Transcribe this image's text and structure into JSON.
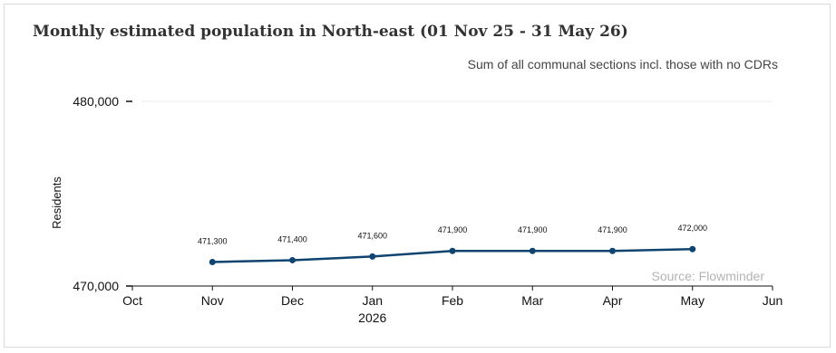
{
  "title": "Monthly estimated population in North-east (01 Nov 25 - 31 May 26)",
  "subtitle": "Sum of all communal sections incl. those with no CDRs",
  "source": "Source: Flowminder",
  "colors": {
    "line": "#0f4470",
    "grid": "#ebebeb",
    "axis": "#111111"
  },
  "chart_data": {
    "type": "line",
    "x": [
      "Nov",
      "Dec",
      "Jan",
      "Feb",
      "Mar",
      "Apr",
      "May"
    ],
    "series": [
      {
        "values": [
          471300,
          471400,
          471600,
          471900,
          471900,
          471900,
          472000
        ]
      }
    ],
    "data_labels": [
      "471,300",
      "471,400",
      "471,600",
      "471,900",
      "471,900",
      "471,900",
      "472,000"
    ],
    "x_ticks": [
      "Oct",
      "Nov",
      "Dec",
      "Jan",
      "Feb",
      "Mar",
      "Apr",
      "May",
      "Jun"
    ],
    "x_year_label": "2026",
    "y_ticks": [
      470000,
      480000
    ],
    "y_tick_labels": [
      "470,000",
      "480,000"
    ],
    "ylabel": "Residents",
    "xlabel": "",
    "ylim": [
      470000,
      480000
    ],
    "grid": true
  }
}
